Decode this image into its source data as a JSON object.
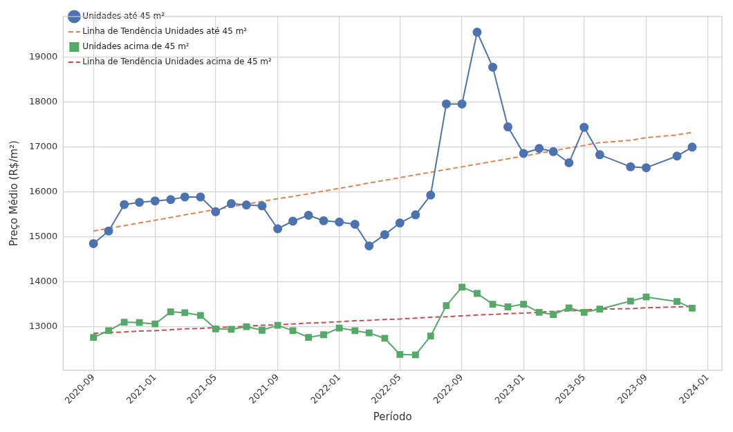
{
  "chart_data": {
    "type": "line",
    "xlabel": "Período",
    "ylabel": "Preço Médio (R$/m²)",
    "x": [
      "2020-09",
      "2020-10",
      "2020-11",
      "2020-12",
      "2021-01",
      "2021-02",
      "2021-03",
      "2021-04",
      "2021-05",
      "2021-06",
      "2021-07",
      "2021-08",
      "2021-09",
      "2021-10",
      "2021-11",
      "2021-12",
      "2022-01",
      "2022-02",
      "2022-03",
      "2022-04",
      "2022-05",
      "2022-06",
      "2022-07",
      "2022-08",
      "2022-09",
      "2022-10",
      "2022-11",
      "2022-12",
      "2023-01",
      "2023-02",
      "2023-03",
      "2023-04",
      "2023-05",
      "2023-06",
      "2023-08",
      "2023-09",
      "2023-11",
      "2023-12"
    ],
    "series": [
      {
        "name": "Unidades até 45 m²",
        "color": "#4c72b0",
        "marker": "circle",
        "line_style": "solid",
        "values": [
          14850,
          15130,
          15720,
          15770,
          15800,
          15830,
          15890,
          15890,
          15560,
          15740,
          15710,
          15690,
          15180,
          15350,
          15480,
          15360,
          15330,
          15280,
          14800,
          15050,
          15310,
          15490,
          15930,
          17960,
          17960,
          19560,
          18780,
          17450,
          16860,
          16970,
          16900,
          16650,
          17440,
          16830,
          16560,
          16540,
          16800,
          17000
        ]
      },
      {
        "name": "Linha de Tendência Unidades até 45 m²",
        "color": "#dd8452",
        "marker": "none",
        "line_style": "dashed",
        "values": [
          15130,
          15190,
          15250,
          15310,
          15370,
          15430,
          15490,
          15550,
          15610,
          15670,
          15730,
          15790,
          15850,
          15900,
          15960,
          16020,
          16080,
          16140,
          16200,
          16260,
          16320,
          16380,
          16440,
          16500,
          16560,
          16620,
          16680,
          16740,
          16800,
          16860,
          16920,
          16980,
          17040,
          17100,
          17150,
          17210,
          17270,
          17330
        ]
      },
      {
        "name": "Unidades acima de 45 m²",
        "color": "#55a868",
        "marker": "square",
        "line_style": "solid",
        "values": [
          12760,
          12910,
          13100,
          13090,
          13060,
          13330,
          13310,
          13250,
          12950,
          12940,
          13000,
          12920,
          13030,
          12910,
          12760,
          12820,
          12970,
          12910,
          12860,
          12740,
          12380,
          12370,
          12790,
          13470,
          13880,
          13740,
          13500,
          13440,
          13500,
          13320,
          13270,
          13420,
          13320,
          13390,
          13570,
          13660,
          13560,
          13410
        ]
      },
      {
        "name": "Linha de Tendência Unidades acima de 45 m²",
        "color": "#c44e52",
        "marker": "none",
        "line_style": "dashed",
        "values": [
          12850,
          12870,
          12880,
          12900,
          12910,
          12930,
          12950,
          12960,
          12980,
          12990,
          13010,
          13030,
          13040,
          13060,
          13080,
          13090,
          13110,
          13130,
          13140,
          13160,
          13170,
          13190,
          13210,
          13220,
          13240,
          13260,
          13270,
          13290,
          13300,
          13320,
          13340,
          13350,
          13370,
          13390,
          13400,
          13420,
          13440,
          13450
        ]
      }
    ],
    "xlim": [
      "2020-07-03",
      "2024-01-29"
    ],
    "xticks": [
      "2020-09",
      "2021-01",
      "2021-05",
      "2021-09",
      "2022-01",
      "2022-05",
      "2022-09",
      "2023-01",
      "2023-05",
      "2023-09",
      "2024-01"
    ],
    "ylim": [
      12030,
      19910
    ],
    "yticks": [
      13000,
      14000,
      15000,
      16000,
      17000,
      18000,
      19000
    ],
    "grid": true,
    "legend": "top left"
  }
}
